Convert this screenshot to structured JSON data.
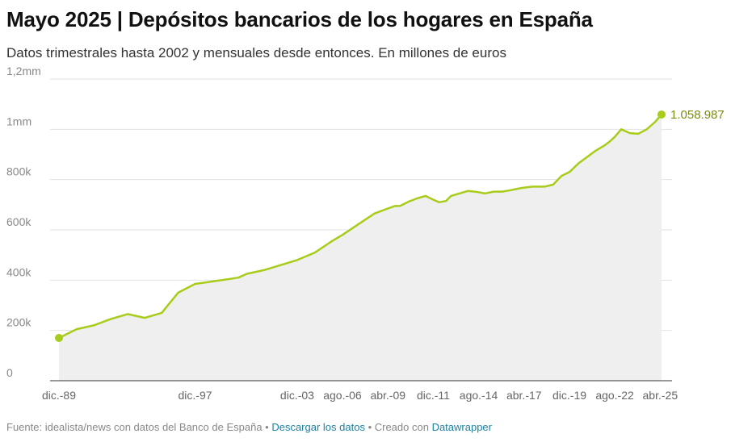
{
  "header": {
    "title": "Mayo 2025 | Depósitos bancarios de los hogares en España",
    "subtitle": "Datos trimestrales hasta 2002 y mensuales desde entonces. En millones de euros"
  },
  "footer": {
    "source": "Fuente: idealista/news con datos del Banco de España",
    "sep1": " • ",
    "download": "Descargar los datos",
    "sep2": " • Creado con ",
    "tool": "Datawrapper"
  },
  "colors": {
    "line": "#a8cc1a",
    "area": "#efefef",
    "label": "#7a8a10"
  },
  "chart_data": {
    "type": "area",
    "title": "Mayo 2025 | Depósitos bancarios de los hogares en España",
    "subtitle": "Datos trimestrales hasta 2002 y mensuales desde entonces. En millones de euros",
    "ylim": [
      0,
      1200000
    ],
    "y_ticks": [
      0,
      200000,
      400000,
      600000,
      800000,
      1000000,
      1200000
    ],
    "y_tick_labels": [
      "0",
      "200k",
      "400k",
      "600k",
      "800k",
      "1mm",
      "1,2mm"
    ],
    "x_range": [
      1989.96,
      2025.37
    ],
    "x_ticks": [
      1989.96,
      1997.96,
      2003.96,
      2006.62,
      2009.29,
      2011.96,
      2014.62,
      2017.29,
      2019.96,
      2022.62,
      2025.29
    ],
    "x_tick_labels": [
      "dic.-89",
      "dic.-97",
      "dic.-03",
      "ago.-06",
      "abr.-09",
      "dic.-11",
      "ago.-14",
      "abr.-17",
      "dic.-19",
      "ago.-22",
      "abr.-25"
    ],
    "grid": true,
    "end_label": "1.058.987",
    "series": [
      {
        "x": [
          1989.96,
          1991.0,
          1992.0,
          1993.0,
          1994.0,
          1995.0,
          1996.0,
          1996.96,
          1997.96,
          1999.0,
          2000.0,
          2000.5,
          2001.0,
          2002.0,
          2003.0,
          2003.96,
          2005.0,
          2006.0,
          2006.62,
          2007.5,
          2008.5,
          2009.29,
          2009.7,
          2010.0,
          2010.5,
          2011.0,
          2011.5,
          2011.96,
          2012.3,
          2012.7,
          2013.0,
          2013.5,
          2014.0,
          2014.62,
          2015.0,
          2015.5,
          2016.0,
          2016.5,
          2017.0,
          2017.29,
          2017.8,
          2018.5,
          2019.0,
          2019.5,
          2019.96,
          2020.5,
          2021.0,
          2021.5,
          2022.0,
          2022.3,
          2022.62,
          2023.0,
          2023.5,
          2024.0,
          2024.5,
          2025.0,
          2025.37
        ],
        "values": [
          170000,
          205000,
          220000,
          245000,
          265000,
          250000,
          270000,
          350000,
          385000,
          395000,
          405000,
          410000,
          425000,
          440000,
          460000,
          480000,
          510000,
          555000,
          580000,
          620000,
          665000,
          685000,
          695000,
          695000,
          712000,
          725000,
          735000,
          720000,
          710000,
          715000,
          735000,
          745000,
          755000,
          750000,
          745000,
          752000,
          752000,
          758000,
          765000,
          768000,
          772000,
          772000,
          780000,
          815000,
          830000,
          865000,
          890000,
          915000,
          935000,
          950000,
          970000,
          1000000,
          985000,
          982000,
          1000000,
          1030000,
          1058987
        ]
      }
    ]
  }
}
